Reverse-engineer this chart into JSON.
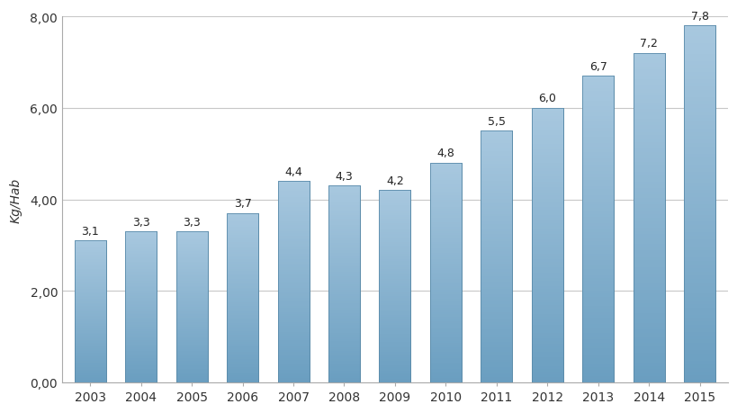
{
  "years": [
    2003,
    2004,
    2005,
    2006,
    2007,
    2008,
    2009,
    2010,
    2011,
    2012,
    2013,
    2014,
    2015
  ],
  "values": [
    3.1,
    3.3,
    3.3,
    3.7,
    4.4,
    4.3,
    4.2,
    4.8,
    5.5,
    6.0,
    6.7,
    7.2,
    7.8
  ],
  "labels": [
    "3,1",
    "3,3",
    "3,3",
    "3,7",
    "4,4",
    "4,3",
    "4,2",
    "4,8",
    "5,5",
    "6,0",
    "6,7",
    "7,2",
    "7,8"
  ],
  "bar_color_top": "#A8C8DF",
  "bar_color_bottom": "#6A9EC0",
  "bar_edge_color": "#5A8BAA",
  "ylabel": "Kg/Hab",
  "ylim": [
    0,
    8.0
  ],
  "yticks": [
    0.0,
    2.0,
    4.0,
    6.0,
    8.0
  ],
  "ytick_labels": [
    "0,00",
    "2,00",
    "4,00",
    "6,00",
    "8,00"
  ],
  "background_color": "#ffffff",
  "plot_bg_color": "#ffffff",
  "grid_color": "#c8c8c8",
  "label_fontsize": 9,
  "axis_fontsize": 10,
  "ylabel_fontsize": 10,
  "bar_width": 0.62
}
